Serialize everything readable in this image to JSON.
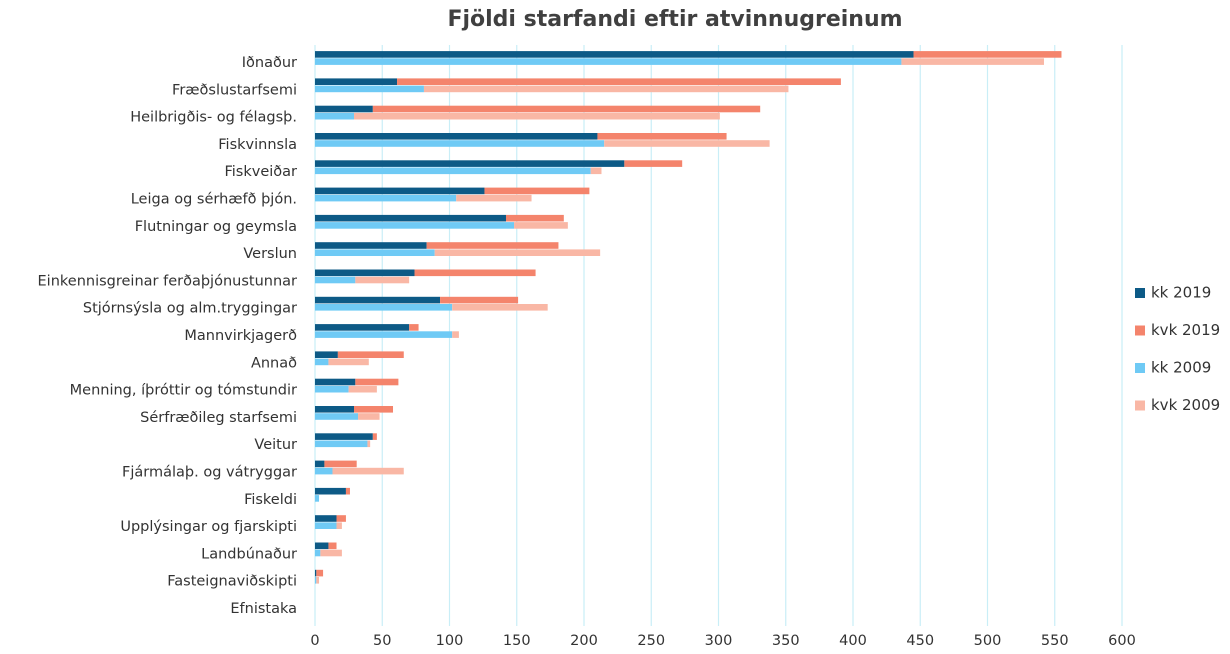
{
  "chart_data": {
    "type": "bar",
    "orientation": "horizontal",
    "stacked": true,
    "title": "Fjöldi starfandi eftir atvinnugreinum",
    "categories": [
      "Iðnaður",
      "Fræðslustarfsemi",
      "Heilbrigðis- og félagsþ.",
      "Fiskvinnsla",
      "Fiskveiðar",
      "Leiga og sérhæfð þjón.",
      "Flutningar og geymsla",
      "Verslun",
      "Einkennisgreinar ferðaþjónustunnar",
      "Stjórnsýsla og alm.tryggingar",
      "Mannvirkjagerð",
      "Annað",
      "Menning, íþróttir og tómstundir",
      "Sérfræðileg starfsemi",
      "Veitur",
      "Fjármálaþ. og vátryggar",
      "Fiskeldi",
      "Upplýsingar og fjarskipti",
      "Landbúnaður",
      "Fasteignaviðskipti",
      "Efnistaka"
    ],
    "series": [
      {
        "name": "kk 2019",
        "color": "#0d5a86",
        "stack": 0,
        "values": [
          445,
          61,
          43,
          210,
          230,
          126,
          142,
          83,
          74,
          93,
          70,
          17,
          30,
          29,
          43,
          7,
          23,
          16,
          10,
          1,
          0
        ]
      },
      {
        "name": "kvk 2019",
        "color": "#f4846c",
        "stack": 0,
        "values": [
          110,
          330,
          288,
          96,
          43,
          78,
          43,
          98,
          90,
          58,
          7,
          49,
          32,
          29,
          3,
          24,
          3,
          7,
          6,
          5,
          0
        ]
      },
      {
        "name": "kk 2009",
        "color": "#6fcaf5",
        "stack": 1,
        "values": [
          436,
          81,
          29,
          215,
          205,
          105,
          148,
          89,
          30,
          102,
          102,
          10,
          25,
          32,
          39,
          13,
          3,
          16,
          4,
          1,
          0
        ]
      },
      {
        "name": "kvk 2009",
        "color": "#f9b7a5",
        "stack": 1,
        "values": [
          106,
          271,
          272,
          123,
          8,
          56,
          40,
          123,
          40,
          71,
          5,
          30,
          21,
          16,
          2,
          53,
          0,
          4,
          16,
          2,
          0
        ]
      }
    ],
    "xlim": [
      0,
      600
    ],
    "xticks": [
      0,
      50,
      100,
      150,
      200,
      250,
      300,
      350,
      400,
      450,
      500,
      550,
      600
    ],
    "grid": true,
    "grid_color": "#c9eef7",
    "legend": "right"
  }
}
